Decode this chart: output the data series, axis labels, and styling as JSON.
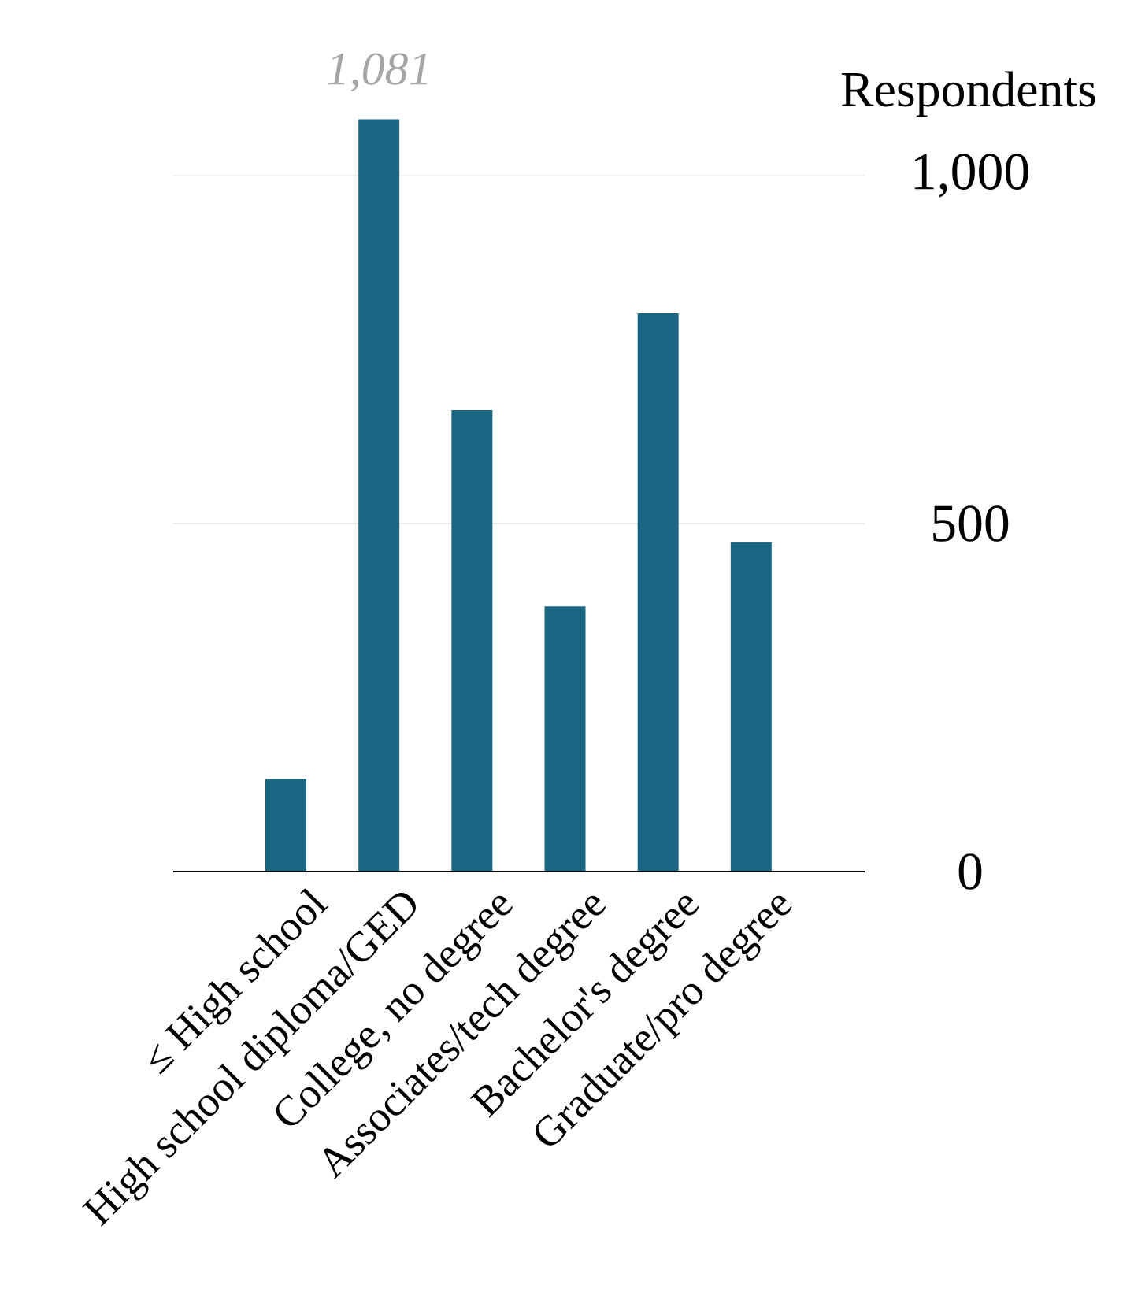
{
  "chart_data": {
    "type": "bar",
    "ylabel": "Respondents",
    "categories": [
      "≤ High school",
      "High school diploma/GED",
      "College, no degree",
      "Associates/tech degree",
      "Bachelor's degree",
      "Graduate/pro degree"
    ],
    "values": [
      133,
      1081,
      663,
      381,
      802,
      473
    ],
    "value_labels": [
      null,
      "1,081",
      null,
      null,
      null,
      null
    ],
    "color": "#1a6683",
    "ylim": [
      0,
      1081
    ],
    "yticks": [
      0,
      {
        "value": 500,
        "label": "500"
      },
      {
        "value": 1000,
        "label": "1,000"
      }
    ],
    "grid": "y"
  }
}
